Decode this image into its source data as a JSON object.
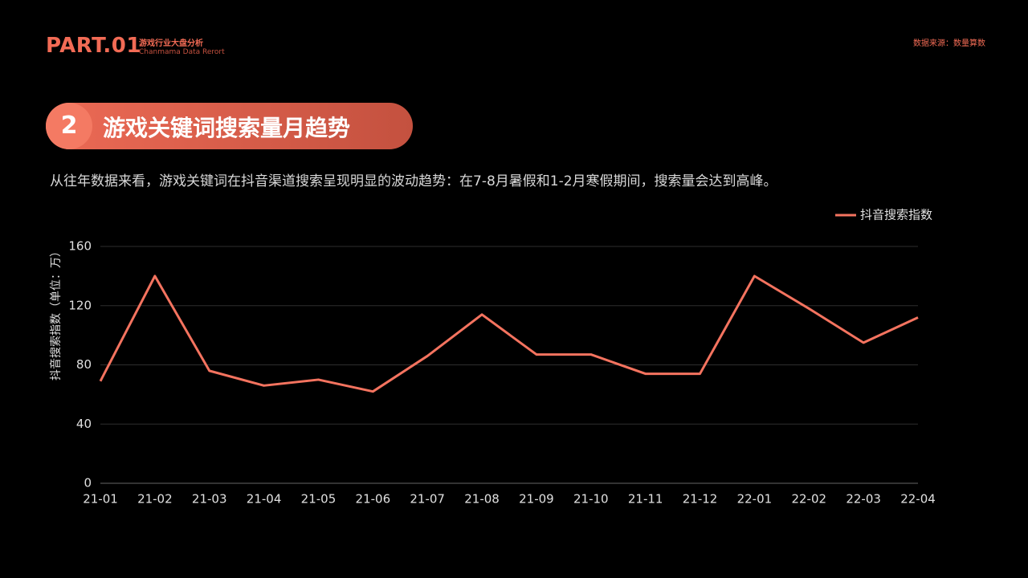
{
  "header": {
    "part": "PART.01",
    "subtitle": "游戏行业大盘分析",
    "subtitle_en": "Chanmama Data Rerort",
    "source": "数据来源：数量算数"
  },
  "section": {
    "number": "2",
    "title": "游戏关键词搜索量月趋势"
  },
  "description": "从往年数据来看，游戏关键词在抖音渠道搜索呈现明显的波动趋势：在7-8月暑假和1-2月寒假期间，搜索量会达到高峰。",
  "chart_data": {
    "type": "line",
    "y_label": "抖音搜索指数（单位：万）",
    "categories": [
      "21-01",
      "21-02",
      "21-03",
      "21-04",
      "21-05",
      "21-06",
      "21-07",
      "21-08",
      "21-09",
      "21-10",
      "21-11",
      "21-12",
      "22-01",
      "22-02",
      "22-03",
      "22-04"
    ],
    "series": [
      {
        "name": "抖音搜索指数",
        "color": "#f4735f",
        "values": [
          69,
          140,
          76,
          66,
          70,
          62,
          86,
          114,
          87,
          87,
          74,
          74,
          140,
          118,
          95,
          112
        ]
      }
    ],
    "ylim": [
      0,
      160
    ],
    "yticks": [
      0,
      40,
      80,
      120,
      160
    ],
    "grid": true,
    "legend": "top-right"
  }
}
